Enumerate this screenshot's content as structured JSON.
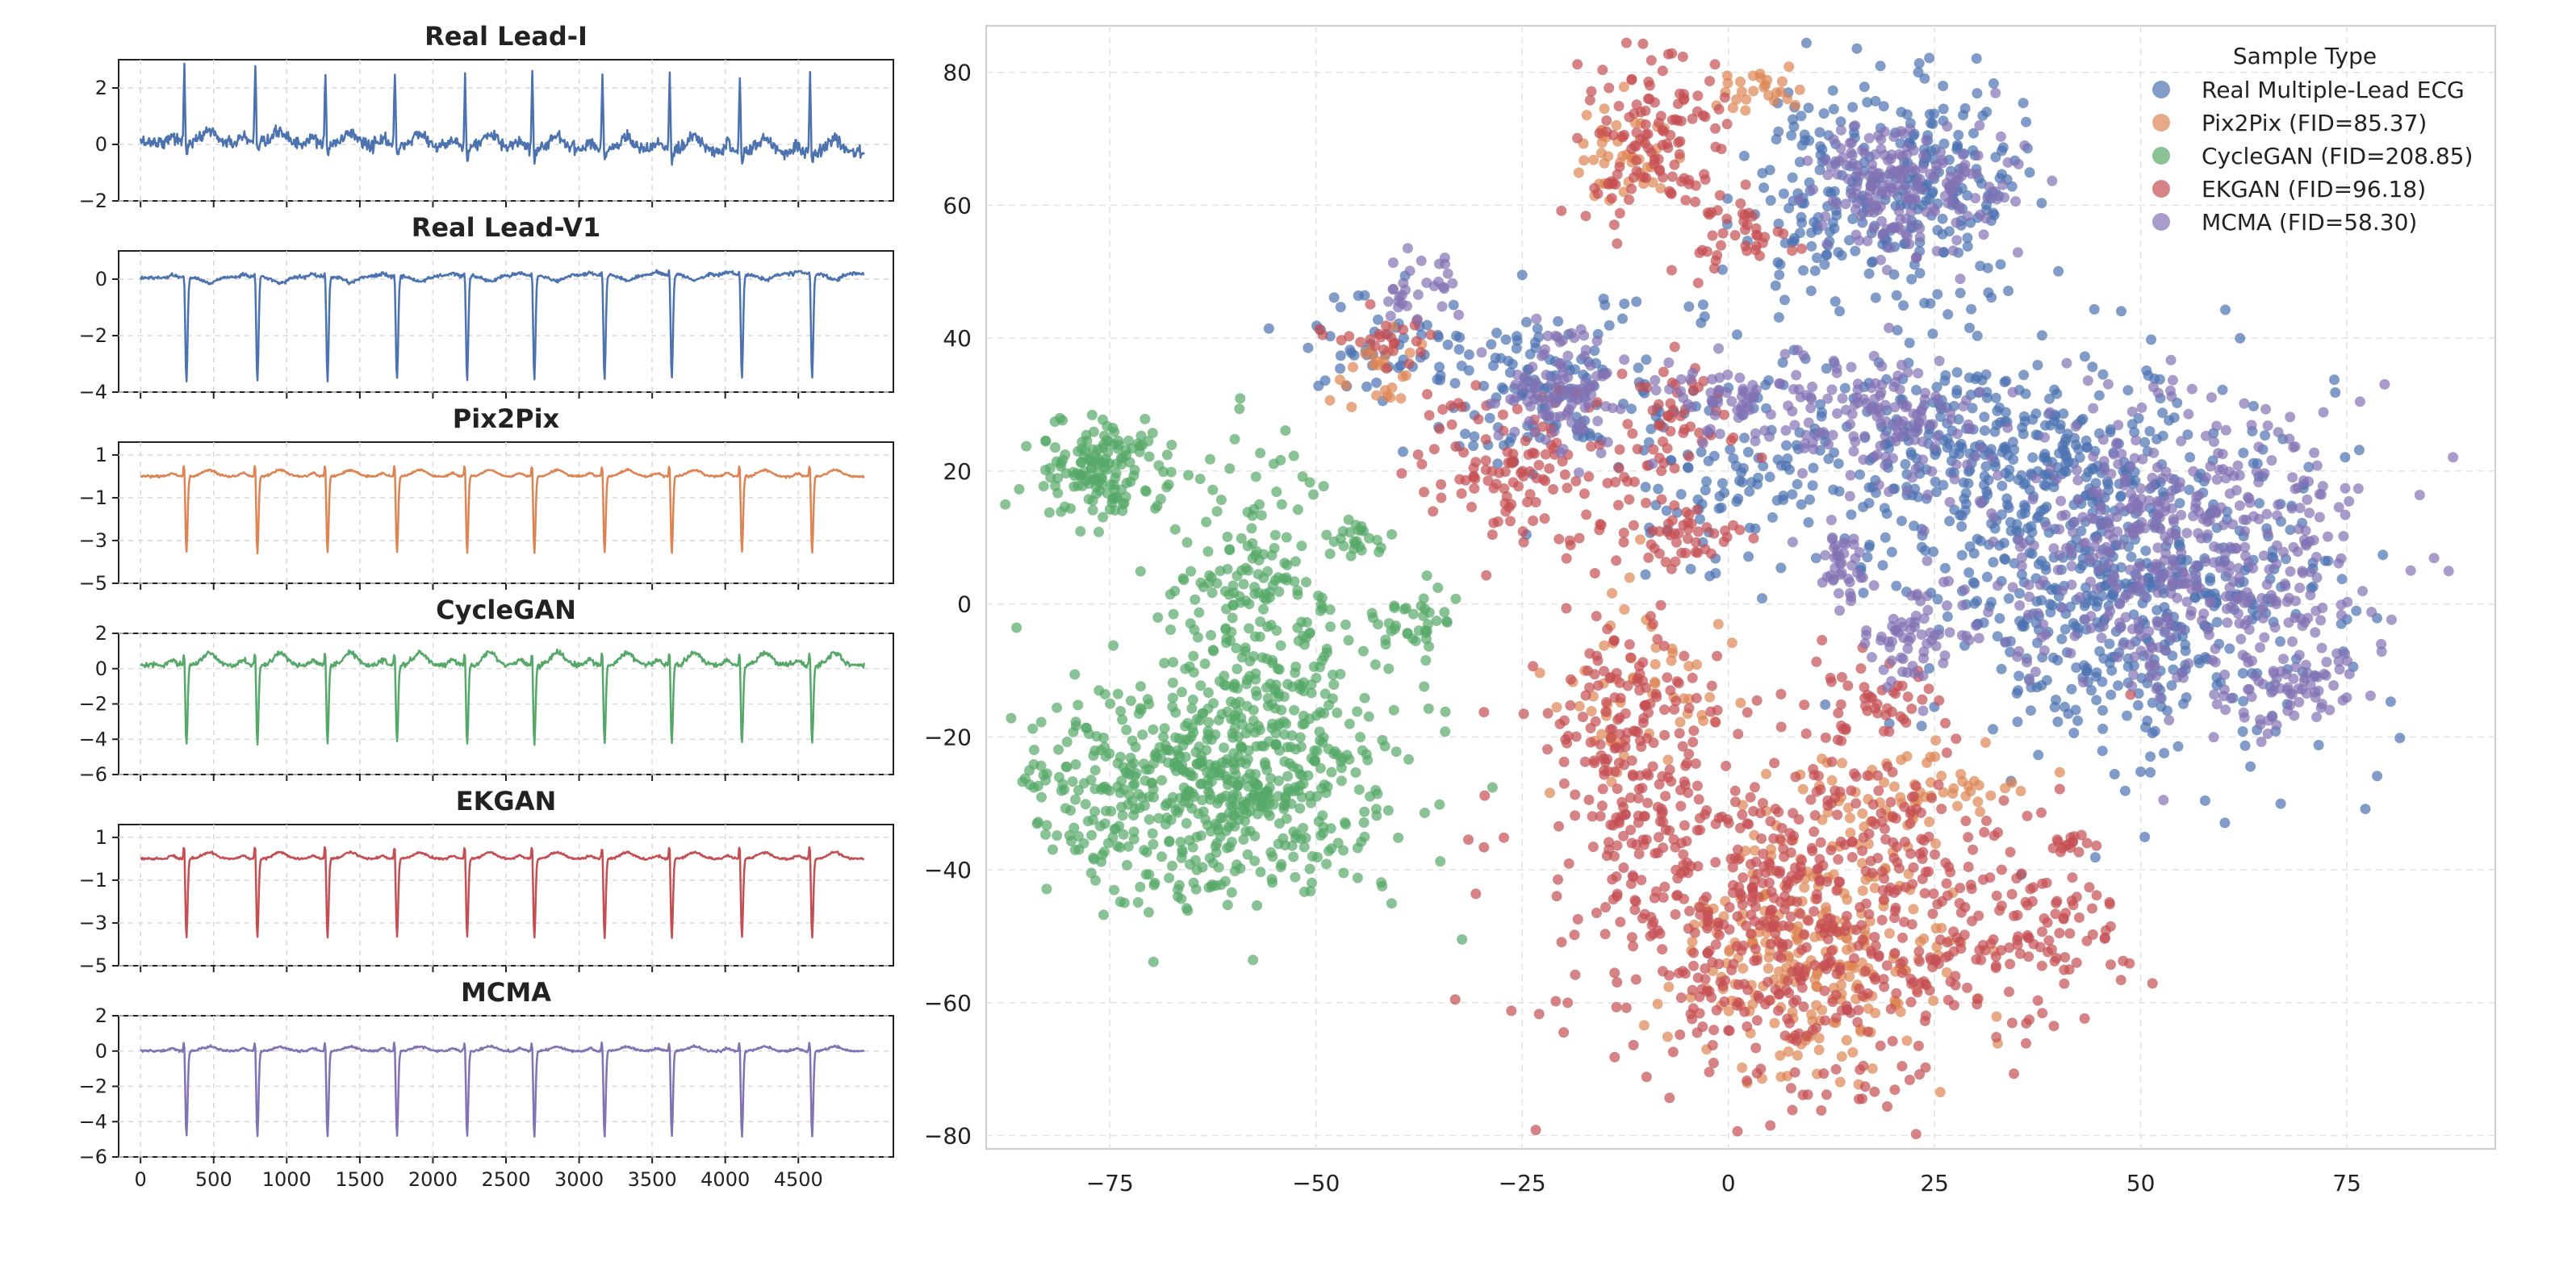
{
  "colors": {
    "real": "#4c72b0",
    "pix2pix": "#dd8452",
    "cyclegan": "#55a868",
    "ekgan": "#c44e52",
    "mcma": "#8172b3",
    "grid": "#d9d9d9",
    "axis": "#222222"
  },
  "chart_data": [
    {
      "type": "line",
      "title": "Real Lead-I",
      "color_key": "real",
      "ylim": [
        -2,
        3
      ],
      "yticks": [
        -2,
        0,
        2
      ],
      "xlim": [
        -150,
        5150
      ],
      "beats": [
        300,
        785,
        1265,
        1740,
        2220,
        2680,
        3160,
        3620,
        4100,
        4580
      ],
      "x_end": 4950,
      "baseline": 0.1,
      "drift": -0.4,
      "r_amp": 2.75,
      "s_amp": -0.45,
      "p_amp": 0.25,
      "t_amp": 0.45,
      "noise": 0.18,
      "grid": true
    },
    {
      "type": "line",
      "title": "Real Lead-V1",
      "color_key": "real",
      "ylim": [
        -4,
        1
      ],
      "yticks": [
        -4,
        -2,
        0
      ],
      "xlim": [
        -150,
        5150
      ],
      "beats": [
        300,
        785,
        1265,
        1740,
        2220,
        2680,
        3160,
        3620,
        4100,
        4580
      ],
      "x_end": 4950,
      "baseline": 0.05,
      "drift": 0.15,
      "r_amp": 0.5,
      "s_amp": -3.7,
      "p_amp": 0.1,
      "t_amp": -0.2,
      "noise": 0.05,
      "grid": true
    },
    {
      "type": "line",
      "title": "Pix2Pix",
      "color_key": "pix2pix",
      "ylim": [
        -5,
        1.6
      ],
      "yticks": [
        -5,
        -3,
        -1,
        1
      ],
      "xlim": [
        -150,
        5150
      ],
      "beats": [
        300,
        785,
        1265,
        1740,
        2220,
        2680,
        3160,
        3620,
        4100,
        4580
      ],
      "x_end": 4950,
      "baseline": 0.0,
      "drift": 0.0,
      "r_amp": 1.1,
      "s_amp": -3.6,
      "p_amp": 0.15,
      "t_amp": 0.3,
      "noise": 0.04,
      "grid": true
    },
    {
      "type": "line",
      "title": "CycleGAN",
      "color_key": "cyclegan",
      "ylim": [
        -6,
        2
      ],
      "yticks": [
        -6,
        -4,
        -2,
        0,
        2
      ],
      "xlim": [
        -150,
        5150
      ],
      "beats": [
        300,
        785,
        1265,
        1740,
        2220,
        2680,
        3160,
        3620,
        4100,
        4580
      ],
      "x_end": 4950,
      "baseline": 0.2,
      "drift": 0.0,
      "r_amp": 1.4,
      "s_amp": -4.5,
      "p_amp": 0.3,
      "t_amp": 0.7,
      "noise": 0.12,
      "grid": true
    },
    {
      "type": "line",
      "title": "EKGAN",
      "color_key": "ekgan",
      "ylim": [
        -5,
        1.6
      ],
      "yticks": [
        -5,
        -3,
        -1,
        1
      ],
      "xlim": [
        -150,
        5150
      ],
      "beats": [
        300,
        785,
        1265,
        1740,
        2220,
        2680,
        3160,
        3620,
        4100,
        4580
      ],
      "x_end": 4950,
      "baseline": 0.0,
      "drift": 0.0,
      "r_amp": 1.2,
      "s_amp": -3.7,
      "p_amp": 0.15,
      "t_amp": 0.3,
      "noise": 0.04,
      "grid": true
    },
    {
      "type": "line",
      "title": "MCMA",
      "color_key": "mcma",
      "ylim": [
        -6,
        2
      ],
      "yticks": [
        -6,
        -4,
        -2,
        0,
        2
      ],
      "xlim": [
        -150,
        5150
      ],
      "xticks": [
        0,
        500,
        1000,
        1500,
        2000,
        2500,
        3000,
        3500,
        4000,
        4500
      ],
      "beats": [
        300,
        785,
        1265,
        1740,
        2220,
        2680,
        3160,
        3620,
        4100,
        4580
      ],
      "x_end": 4950,
      "baseline": 0.0,
      "drift": 0.0,
      "r_amp": 1.2,
      "s_amp": -4.9,
      "p_amp": 0.15,
      "t_amp": 0.25,
      "noise": 0.05,
      "grid": true
    },
    {
      "type": "scatter",
      "title": "",
      "xlim": [
        -90,
        93
      ],
      "ylim": [
        -82,
        87
      ],
      "xticks": [
        -75,
        -50,
        -25,
        0,
        25,
        50,
        75
      ],
      "yticks": [
        -80,
        -60,
        -40,
        -20,
        0,
        20,
        40,
        60,
        80
      ],
      "xtick_labels": [
        "−75",
        "−50",
        "−25",
        "0",
        "25",
        "50",
        "75"
      ],
      "ytick_labels": [
        "−80",
        "−60",
        "−40",
        "−20",
        "0",
        "20",
        "40",
        "60",
        "80"
      ],
      "grid": true,
      "legend_position": "top-right",
      "legend_title": "Sample Type",
      "series": [
        {
          "name": "Real Multiple-Lead ECG",
          "color_key": "real",
          "clusters": [
            {
              "cx": 48,
              "cy": 3,
              "sx": 12,
              "sy": 14,
              "n": 600
            },
            {
              "cx": 23,
              "cy": 63,
              "sx": 7,
              "sy": 8,
              "n": 250
            },
            {
              "cx": 8,
              "cy": 60,
              "sx": 4,
              "sy": 10,
              "n": 60
            },
            {
              "cx": 30,
              "cy": 24,
              "sx": 10,
              "sy": 7,
              "n": 260
            },
            {
              "cx": -22,
              "cy": 32,
              "sx": 7,
              "sy": 6,
              "n": 130
            },
            {
              "cx": 2,
              "cy": 20,
              "sx": 7,
              "sy": 9,
              "n": 120
            },
            {
              "cx": -42,
              "cy": 40,
              "sx": 5,
              "sy": 4,
              "n": 50
            }
          ]
        },
        {
          "name": "Pix2Pix (FID=85.37)",
          "color_key": "pix2pix",
          "clusters": [
            {
              "cx": 10,
              "cy": -52,
              "sx": 8,
              "sy": 10,
              "n": 280
            },
            {
              "cx": -12,
              "cy": 68,
              "sx": 3,
              "sy": 4,
              "n": 50
            },
            {
              "cx": 4,
              "cy": 78,
              "sx": 3,
              "sy": 2,
              "n": 25
            },
            {
              "cx": -43,
              "cy": 35,
              "sx": 3,
              "sy": 3,
              "n": 25
            },
            {
              "cx": -10,
              "cy": -12,
              "sx": 5,
              "sy": 8,
              "n": 60
            },
            {
              "cx": 22,
              "cy": -28,
              "sx": 7,
              "sy": 3,
              "n": 60
            }
          ]
        },
        {
          "name": "CycleGAN (FID=208.85)",
          "color_key": "cyclegan",
          "clusters": [
            {
              "cx": -63,
              "cy": -28,
              "sx": 11,
              "sy": 8,
              "n": 600
            },
            {
              "cx": -57,
              "cy": -3,
              "sx": 6,
              "sy": 12,
              "n": 260
            },
            {
              "cx": -76,
              "cy": 20,
              "sx": 4,
              "sy": 4,
              "n": 150
            },
            {
              "cx": -38,
              "cy": -3,
              "sx": 3,
              "sy": 3,
              "n": 40
            },
            {
              "cx": -44,
              "cy": 10,
              "sx": 2,
              "sy": 2,
              "n": 20
            }
          ]
        },
        {
          "name": "EKGAN (FID=96.18)",
          "color_key": "ekgan",
          "clusters": [
            {
              "cx": 8,
              "cy": -45,
              "sx": 14,
              "sy": 14,
              "n": 650
            },
            {
              "cx": -12,
              "cy": -20,
              "sx": 5,
              "sy": 12,
              "n": 180
            },
            {
              "cx": -9,
              "cy": 70,
              "sx": 5,
              "sy": 7,
              "n": 120
            },
            {
              "cx": -24,
              "cy": 20,
              "sx": 7,
              "sy": 6,
              "n": 130
            },
            {
              "cx": 0,
              "cy": 55,
              "sx": 3,
              "sy": 4,
              "n": 40
            },
            {
              "cx": -6,
              "cy": 28,
              "sx": 3,
              "sy": 5,
              "n": 50
            },
            {
              "cx": 37,
              "cy": -50,
              "sx": 5,
              "sy": 5,
              "n": 80
            },
            {
              "cx": -42,
              "cy": 40,
              "sx": 3,
              "sy": 2,
              "n": 25
            },
            {
              "cx": -5,
              "cy": 10,
              "sx": 4,
              "sy": 2,
              "n": 40
            },
            {
              "cx": 17,
              "cy": -14,
              "sx": 5,
              "sy": 3,
              "n": 40
            },
            {
              "cx": 42,
              "cy": -36,
              "sx": 2,
              "sy": 1,
              "n": 15
            }
          ]
        },
        {
          "name": "MCMA (FID=58.30)",
          "color_key": "mcma",
          "clusters": [
            {
              "cx": 55,
              "cy": 8,
              "sx": 12,
              "sy": 11,
              "n": 520
            },
            {
              "cx": 22,
              "cy": 62,
              "sx": 6,
              "sy": 5,
              "n": 200
            },
            {
              "cx": 18,
              "cy": 28,
              "sx": 6,
              "sy": 5,
              "n": 140
            },
            {
              "cx": -20,
              "cy": 32,
              "sx": 4,
              "sy": 5,
              "n": 110
            },
            {
              "cx": 22,
              "cy": -5,
              "sx": 3,
              "sy": 4,
              "n": 60
            },
            {
              "cx": 14,
              "cy": 5,
              "sx": 2,
              "sy": 3,
              "n": 40
            },
            {
              "cx": 0,
              "cy": 32,
              "sx": 4,
              "sy": 3,
              "n": 50
            },
            {
              "cx": -36,
              "cy": 47,
              "sx": 3,
              "sy": 2,
              "n": 30
            },
            {
              "cx": 68,
              "cy": -12,
              "sx": 4,
              "sy": 3,
              "n": 60
            }
          ]
        }
      ]
    }
  ]
}
